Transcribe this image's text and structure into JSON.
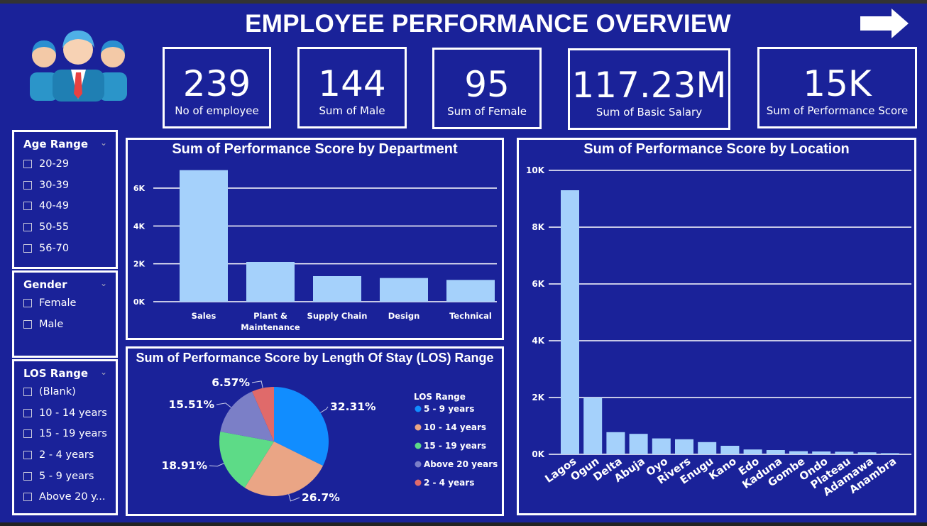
{
  "header": {
    "title": "EMPLOYEE PERFORMANCE OVERVIEW"
  },
  "icons": {
    "logo": "employees-group-icon",
    "arrow": "right-arrow-icon"
  },
  "colors": {
    "background": "#1a2299",
    "bar": "#a5d1fb",
    "grid": "#ffffff"
  },
  "kpis": [
    {
      "value": "239",
      "label": "No of employee"
    },
    {
      "value": "144",
      "label": "Sum of Male"
    },
    {
      "value": "95",
      "label": "Sum of Female"
    },
    {
      "value": "117.23M",
      "label": "Sum of Basic Salary"
    },
    {
      "value": "15K",
      "label": "Sum of Performance Score"
    }
  ],
  "slicers": {
    "age": {
      "title": "Age Range",
      "items": [
        "20-29",
        "30-39",
        "40-49",
        "50-55",
        "56-70"
      ]
    },
    "gender": {
      "title": "Gender",
      "items": [
        "Female",
        "Male"
      ]
    },
    "los": {
      "title": "LOS Range",
      "items": [
        "(Blank)",
        "10 - 14 years",
        "15 - 19 years",
        "2 - 4 years",
        "5 - 9 years",
        "Above 20 y..."
      ]
    }
  },
  "chart_data": [
    {
      "type": "bar",
      "title": "Sum of Performance Score by Department",
      "categories": [
        "Sales",
        "Plant & Maintenance",
        "Supply Chain",
        "Design",
        "Technical"
      ],
      "category_lines": [
        [
          "Sales"
        ],
        [
          "Plant &",
          "Maintenance"
        ],
        [
          "Supply Chain"
        ],
        [
          "Design"
        ],
        [
          "Technical"
        ]
      ],
      "values": [
        6950,
        2100,
        1350,
        1250,
        1150
      ],
      "ylim": [
        0,
        7000
      ],
      "yticks": [
        0,
        2000,
        4000,
        6000
      ],
      "ytick_labels": [
        "0K",
        "2K",
        "4K",
        "6K"
      ],
      "grid": true
    },
    {
      "type": "bar",
      "title": "Sum of Performance Score by Location",
      "categories": [
        "Lagos",
        "Ogun",
        "Delta",
        "Abuja",
        "Oyo",
        "Rivers",
        "Enugu",
        "Kano",
        "Edo",
        "Kaduna",
        "Gombe",
        "Ondo",
        "Plateau",
        "Adamawa",
        "Anambra"
      ],
      "values": [
        9300,
        2000,
        780,
        720,
        560,
        530,
        430,
        300,
        170,
        150,
        110,
        100,
        90,
        70,
        40
      ],
      "ylim": [
        0,
        10000
      ],
      "yticks": [
        0,
        2000,
        4000,
        6000,
        8000,
        10000
      ],
      "ytick_labels": [
        "0K",
        "2K",
        "4K",
        "6K",
        "8K",
        "10K"
      ],
      "grid": true
    },
    {
      "type": "pie",
      "title": "Sum of Performance Score by Length Of Stay (LOS) Range",
      "legend_title": "LOS Range",
      "legend_position": "right",
      "slices": [
        {
          "name": "5 - 9 years",
          "value": 32.31,
          "label": "32.31%",
          "color": "#118dff"
        },
        {
          "name": "10 - 14 years",
          "value": 26.7,
          "label": "26.7%",
          "color": "#eaa585"
        },
        {
          "name": "15 - 19 years",
          "value": 18.91,
          "label": "18.91%",
          "color": "#5ddb87"
        },
        {
          "name": "Above 20 years",
          "value": 15.51,
          "label": "15.51%",
          "color": "#7b7fc7"
        },
        {
          "name": "2 - 4 years",
          "value": 6.57,
          "label": "6.57%",
          "color": "#e06a6a"
        }
      ]
    }
  ]
}
